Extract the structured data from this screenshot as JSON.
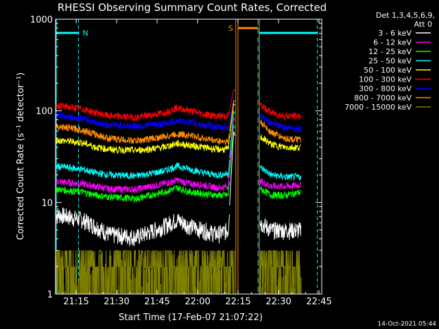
{
  "chart_data": {
    "type": "line",
    "title": "RHESSI Observing Summary Count Rates, Corrected",
    "xlabel": "Start Time (17-Feb-07 21:07:22)",
    "ylabel": "Corrected Count Rate (s⁻¹ detector⁻¹)",
    "x_range": [
      "21:07:22",
      "22:46:00"
    ],
    "ylim": [
      1,
      1000
    ],
    "yscale": "log",
    "grid": false,
    "legend_position": "right",
    "x_ticks": [
      "21:15",
      "21:30",
      "21:45",
      "22:00",
      "22:15",
      "22:30",
      "22:45"
    ],
    "y_ticks": [
      "1",
      "10",
      "100",
      "1000"
    ],
    "legend_header": [
      "Det 1,3,4,5,6,9,",
      "Att 0"
    ],
    "series": [
      {
        "name": "3 - 6 keV",
        "color": "#ffffff",
        "points": [
          [
            0,
            7.5
          ],
          [
            10,
            6.5
          ],
          [
            15,
            5.5
          ],
          [
            20,
            4.5
          ],
          [
            30,
            4.2
          ],
          [
            40,
            5.5
          ],
          [
            45,
            6.5
          ],
          [
            50,
            5.5
          ],
          [
            55,
            5
          ],
          [
            60,
            4.5
          ],
          [
            64,
            5
          ],
          [
            66,
            60
          ],
          [
            76,
            6
          ],
          [
            80,
            5
          ],
          [
            85,
            5
          ],
          [
            91,
            5
          ]
        ]
      },
      {
        "name": "6 - 12 keV",
        "color": "#ff00ff",
        "points": [
          [
            0,
            17
          ],
          [
            10,
            16
          ],
          [
            15,
            15
          ],
          [
            20,
            14
          ],
          [
            30,
            14
          ],
          [
            40,
            16
          ],
          [
            45,
            17.5
          ],
          [
            50,
            16
          ],
          [
            55,
            15.5
          ],
          [
            60,
            14.5
          ],
          [
            64,
            15
          ],
          [
            66,
            85
          ],
          [
            76,
            17
          ],
          [
            80,
            15
          ],
          [
            85,
            15
          ],
          [
            91,
            15.5
          ]
        ]
      },
      {
        "name": "12 - 25 keV",
        "color": "#00ff00",
        "points": [
          [
            0,
            14
          ],
          [
            10,
            13
          ],
          [
            15,
            12
          ],
          [
            20,
            11.5
          ],
          [
            30,
            11
          ],
          [
            40,
            13
          ],
          [
            45,
            14.5
          ],
          [
            50,
            13
          ],
          [
            55,
            12.5
          ],
          [
            60,
            12
          ],
          [
            64,
            12
          ],
          [
            66,
            70
          ],
          [
            76,
            14
          ],
          [
            80,
            12
          ],
          [
            85,
            12
          ],
          [
            91,
            13
          ]
        ]
      },
      {
        "name": "25 - 50 keV",
        "color": "#00ffff",
        "points": [
          [
            0,
            25
          ],
          [
            10,
            23
          ],
          [
            15,
            21
          ],
          [
            20,
            20
          ],
          [
            30,
            19.5
          ],
          [
            40,
            22
          ],
          [
            45,
            25
          ],
          [
            50,
            23
          ],
          [
            55,
            21
          ],
          [
            60,
            20
          ],
          [
            64,
            20.5
          ],
          [
            66,
            100
          ],
          [
            76,
            24
          ],
          [
            80,
            20
          ],
          [
            85,
            19
          ],
          [
            91,
            19
          ]
        ]
      },
      {
        "name": "50 - 100 keV",
        "color": "#ffff00",
        "points": [
          [
            0,
            48
          ],
          [
            10,
            45
          ],
          [
            15,
            40
          ],
          [
            20,
            38
          ],
          [
            30,
            37
          ],
          [
            40,
            40
          ],
          [
            45,
            44
          ],
          [
            50,
            42
          ],
          [
            55,
            40
          ],
          [
            60,
            38
          ],
          [
            64,
            38
          ],
          [
            66,
            120
          ],
          [
            76,
            52
          ],
          [
            80,
            43
          ],
          [
            85,
            40
          ],
          [
            91,
            40
          ]
        ]
      },
      {
        "name": "100 - 300 keV",
        "color": "#ff0000",
        "points": [
          [
            0,
            115
          ],
          [
            10,
            105
          ],
          [
            15,
            95
          ],
          [
            20,
            88
          ],
          [
            30,
            85
          ],
          [
            40,
            95
          ],
          [
            45,
            108
          ],
          [
            50,
            100
          ],
          [
            55,
            92
          ],
          [
            60,
            88
          ],
          [
            64,
            88
          ],
          [
            66,
            170
          ],
          [
            76,
            115
          ],
          [
            80,
            95
          ],
          [
            85,
            88
          ],
          [
            91,
            88
          ]
        ]
      },
      {
        "name": "300 - 800 keV",
        "color": "#0000ff",
        "points": [
          [
            0,
            90
          ],
          [
            10,
            82
          ],
          [
            15,
            75
          ],
          [
            20,
            70
          ],
          [
            30,
            68
          ],
          [
            40,
            72
          ],
          [
            45,
            78
          ],
          [
            50,
            75
          ],
          [
            55,
            70
          ],
          [
            60,
            66
          ],
          [
            64,
            66
          ],
          [
            66,
            140
          ],
          [
            76,
            90
          ],
          [
            80,
            72
          ],
          [
            85,
            66
          ],
          [
            91,
            64
          ]
        ]
      },
      {
        "name": "800 - 7000 keV",
        "color": "#ff8c00",
        "points": [
          [
            0,
            68
          ],
          [
            10,
            62
          ],
          [
            15,
            55
          ],
          [
            20,
            50
          ],
          [
            30,
            47
          ],
          [
            40,
            52
          ],
          [
            45,
            56
          ],
          [
            50,
            54
          ],
          [
            55,
            50
          ],
          [
            60,
            47
          ],
          [
            64,
            46
          ],
          [
            66,
            130
          ],
          [
            76,
            75
          ],
          [
            80,
            58
          ],
          [
            85,
            50
          ],
          [
            91,
            48
          ]
        ]
      },
      {
        "name": "7000 - 15000 keV",
        "color": "#808000",
        "points": [
          [
            0,
            2.5
          ],
          [
            10,
            2.3
          ],
          [
            20,
            1.8
          ],
          [
            30,
            1.9
          ],
          [
            40,
            2.2
          ],
          [
            45,
            2.5
          ],
          [
            50,
            2.3
          ],
          [
            60,
            2
          ],
          [
            64,
            2
          ],
          [
            76,
            2
          ],
          [
            85,
            2
          ],
          [
            91,
            2
          ]
        ]
      }
    ],
    "flag_markers": [
      {
        "label": "N",
        "color": "#00ffff"
      },
      {
        "label": "S",
        "color": "#ff8c00"
      }
    ]
  },
  "footer": {
    "timestamp": "14-Oct-2021 05:44"
  }
}
